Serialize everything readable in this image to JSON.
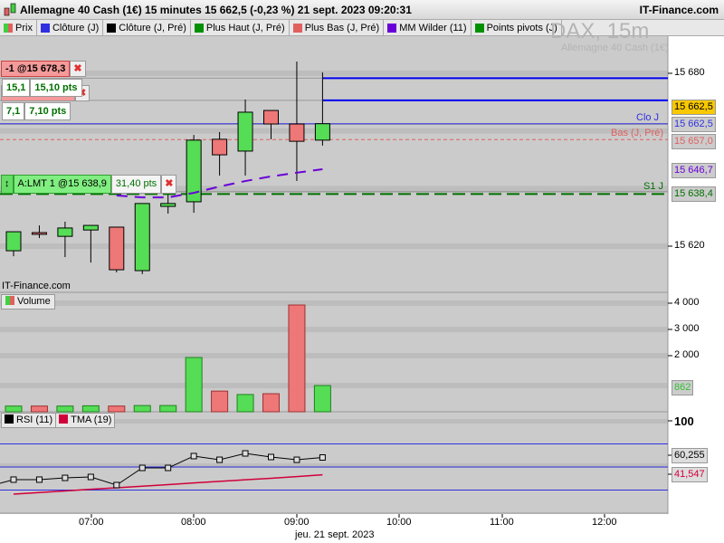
{
  "header": {
    "title": "Allemagne 40 Cash (1€) 15 minutes 15 662,5 (-0,23 %) 21 sept. 2023 09:20:31",
    "brand": "IT-Finance.com"
  },
  "legend": [
    {
      "label": "Prix",
      "color": "#e06060"
    },
    {
      "label": "Clôture (J)",
      "color": "#3030e0"
    },
    {
      "label": "Clôture (J, Pré)",
      "color": "#000000"
    },
    {
      "label": "Plus Haut (J, Pré)",
      "color": "#009000"
    },
    {
      "label": "Plus Bas (J, Pré)",
      "color": "#e06060"
    },
    {
      "label": "MM Wilder (11)",
      "color": "#6a00d8"
    },
    {
      "label": "Points pivots (J)",
      "color": "#009000"
    }
  ],
  "watermark": {
    "symbol": "DAX, 15m",
    "name": "Allemagne 40 Cash (1€)",
    "source": "IT-Finance.com"
  },
  "orders": {
    "sell": {
      "label": "-1 @15 678,3",
      "price": 15678.3
    },
    "sell2": {
      "price": 15670.6,
      "dist_short": "15,1",
      "dist": "15,10 pts"
    },
    "third": {
      "dist_short": "7,1",
      "dist": "7,10 pts"
    },
    "limit": {
      "label": "A:LMT 1 @15 638,9",
      "price": 15638.9,
      "dist": "31,40 pts"
    }
  },
  "levels": {
    "clo_j": {
      "label": "Clo J",
      "value": "15 662,5",
      "price": 15662.5
    },
    "bas_pre": {
      "label": "Bas (J, Pré)",
      "value": "15 657,0",
      "price": 15657.0
    },
    "s1": {
      "label": "S1 J",
      "value": "15 638,4",
      "price": 15638.4
    },
    "last": {
      "value": "15 662,5"
    },
    "wilder": {
      "value": "15 646,7"
    }
  },
  "price_axis": {
    "ticks": [
      "15 680",
      "15 620"
    ],
    "tick_values": [
      15680,
      15620
    ]
  },
  "chart_data": [
    {
      "type": "candlestick",
      "times": [
        "06:15",
        "06:30",
        "06:45",
        "07:00",
        "07:15",
        "07:30",
        "07:45",
        "08:00",
        "08:15",
        "08:30",
        "08:45",
        "09:00",
        "09:15"
      ],
      "open": [
        15618.4,
        15624.7,
        15623.4,
        15625.6,
        15626.6,
        15611.5,
        15633.8,
        15635.4,
        15657.1,
        15653.0,
        15667.1,
        15662.4,
        15656.8
      ],
      "high": [
        15625.0,
        15627.2,
        15628.5,
        15627.2,
        15626.6,
        15634.8,
        15637.9,
        15658.6,
        15659.6,
        15670.9,
        15667.1,
        15684.1,
        15680.3
      ],
      "low": [
        15616.5,
        15622.8,
        15616.2,
        15614.3,
        15610.9,
        15610.3,
        15631.3,
        15631.6,
        15644.5,
        15644.5,
        15657.1,
        15642.6,
        15654.9
      ],
      "close": [
        15625.0,
        15624.1,
        15626.3,
        15627.2,
        15611.8,
        15634.8,
        15634.8,
        15656.8,
        15651.7,
        15666.5,
        15662.4,
        15656.4,
        15662.5
      ],
      "wilder_times": [
        "07:15",
        "07:30",
        "07:45",
        "08:00",
        "08:15",
        "08:30",
        "08:45",
        "09:00",
        "09:15"
      ],
      "wilder": [
        15637.6,
        15636.9,
        15636.9,
        15638.5,
        15640.7,
        15642.6,
        15644.2,
        15645.5,
        15646.7
      ],
      "ylim": [
        15600,
        15690
      ]
    },
    {
      "type": "bar",
      "label": "Volume",
      "values": [
        80,
        80,
        80,
        90,
        80,
        100,
        100,
        1930,
        650,
        520,
        550,
        3930,
        862
      ],
      "ticks": [
        "4 000",
        "3 000",
        "2 000"
      ],
      "tick_values": [
        4000,
        3000,
        2000
      ],
      "last_label": "862"
    },
    {
      "type": "line",
      "series": [
        {
          "name": "RSI (11)",
          "values": [
            36.3,
            36.3,
            38.2,
            39.2,
            30.4,
            49.0,
            49.0,
            61.8,
            57.8,
            64.7,
            60.8,
            57.8,
            60.3
          ],
          "last_label": "60,255",
          "color": "#000000"
        },
        {
          "name": "TMA (19)",
          "values": [
            20.6,
            22.3,
            24.0,
            25.8,
            27.5,
            29.2,
            30.9,
            32.7,
            34.4,
            36.1,
            37.8,
            39.6,
            41.5
          ],
          "last_label": "41,547",
          "color": "#d0003a"
        }
      ],
      "levels": [
        75,
        50,
        25
      ],
      "ticks": [
        "100"
      ],
      "ylim": [
        0,
        100
      ]
    }
  ],
  "time_axis": {
    "ticks": [
      "07:00",
      "08:00",
      "09:00",
      "10:00",
      "11:00",
      "12:00"
    ],
    "date": "jeu. 21 sept. 2023"
  }
}
